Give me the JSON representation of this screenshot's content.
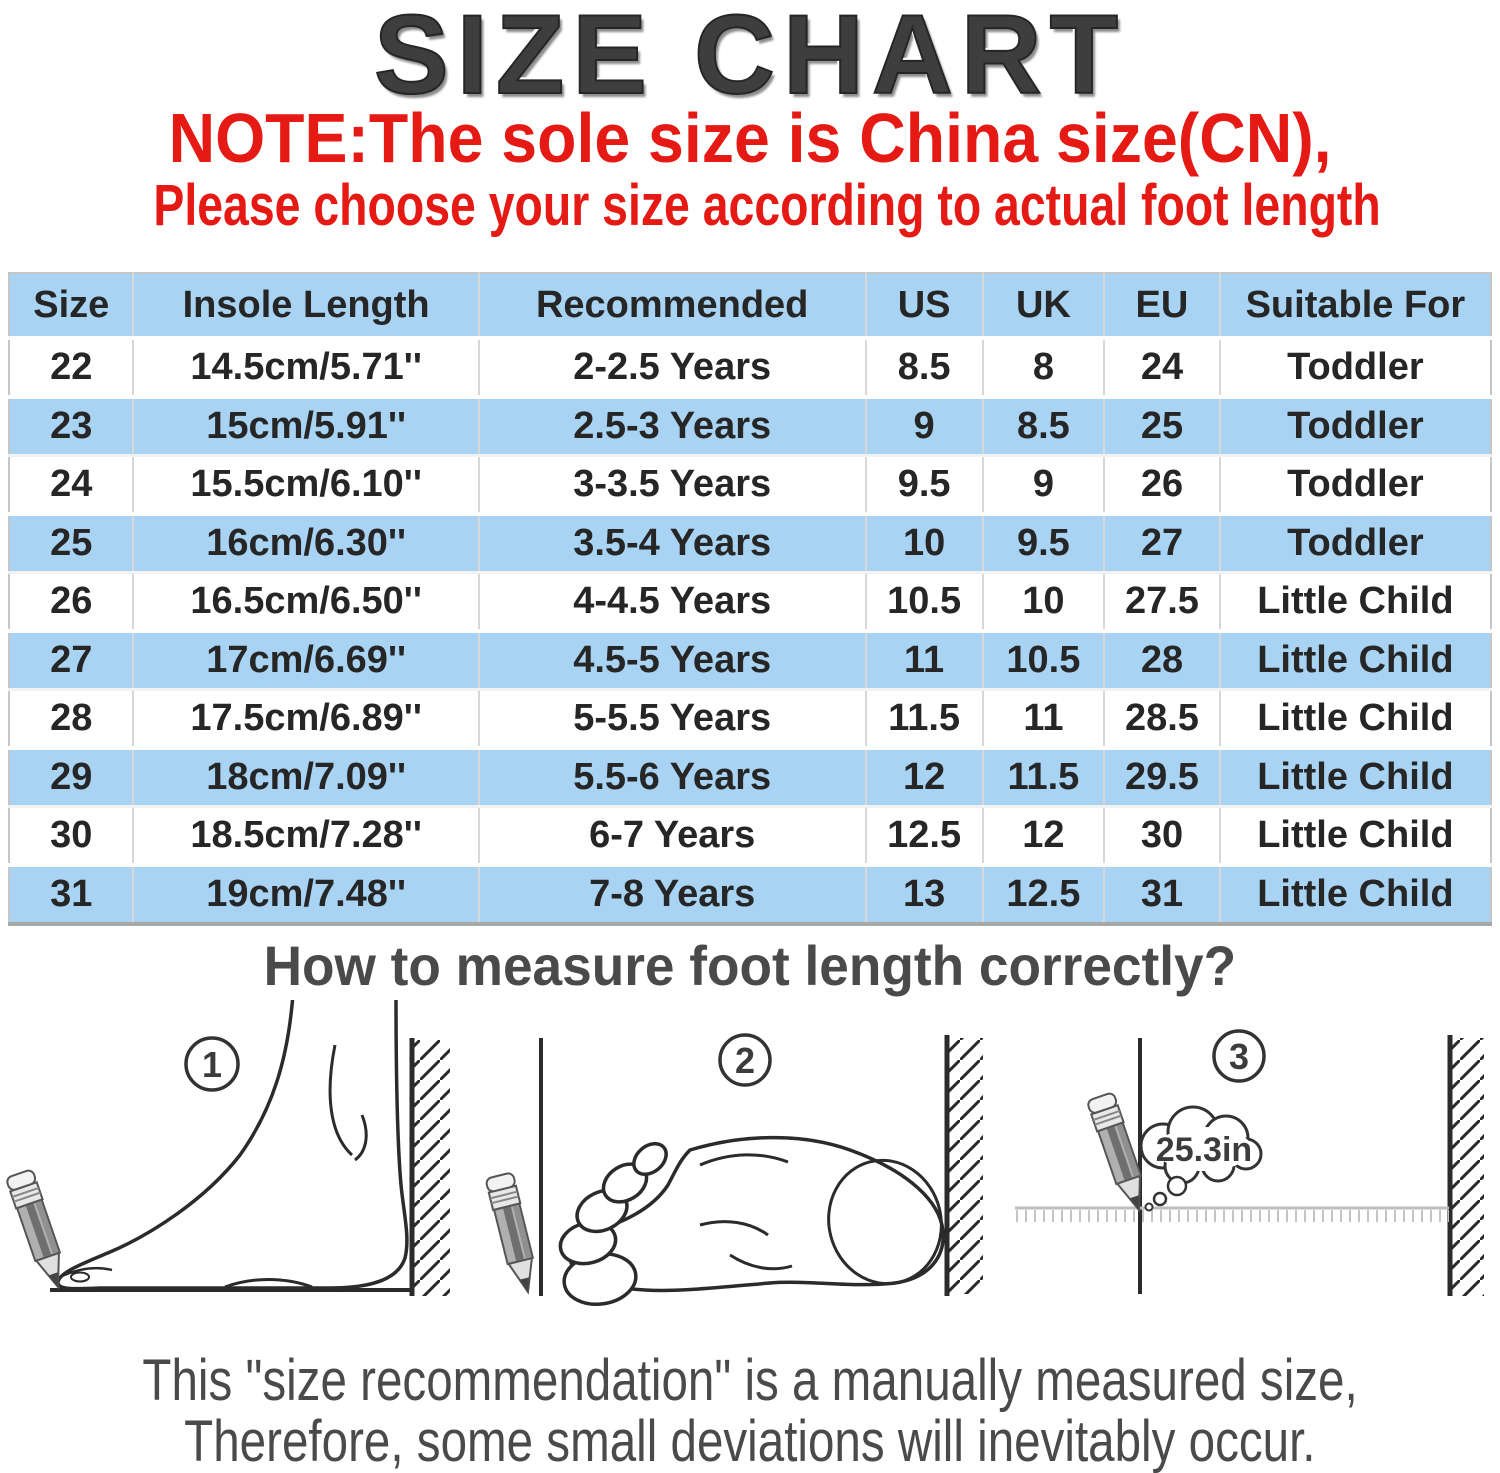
{
  "title": "SIZE CHART",
  "note": {
    "line1": "NOTE:The sole size is China size(CN),",
    "line2": "Please choose your size according to actual foot length"
  },
  "table": {
    "headers": [
      "Size",
      "Insole Length",
      "Recommended",
      "US",
      "UK",
      "EU",
      "Suitable For"
    ],
    "rows": [
      [
        "22",
        "14.5cm/5.71''",
        "2-2.5 Years",
        "8.5",
        "8",
        "24",
        "Toddler"
      ],
      [
        "23",
        "15cm/5.91''",
        "2.5-3 Years",
        "9",
        "8.5",
        "25",
        "Toddler"
      ],
      [
        "24",
        "15.5cm/6.10''",
        "3-3.5 Years",
        "9.5",
        "9",
        "26",
        "Toddler"
      ],
      [
        "25",
        "16cm/6.30''",
        "3.5-4 Years",
        "10",
        "9.5",
        "27",
        "Toddler"
      ],
      [
        "26",
        "16.5cm/6.50''",
        "4-4.5 Years",
        "10.5",
        "10",
        "27.5",
        "Little Child"
      ],
      [
        "27",
        "17cm/6.69''",
        "4.5-5 Years",
        "11",
        "10.5",
        "28",
        "Little Child"
      ],
      [
        "28",
        "17.5cm/6.89''",
        "5-5.5 Years",
        "11.5",
        "11",
        "28.5",
        "Little Child"
      ],
      [
        "29",
        "18cm/7.09''",
        "5.5-6 Years",
        "12",
        "11.5",
        "29.5",
        "Little Child"
      ],
      [
        "30",
        "18.5cm/7.28''",
        "6-7 Years",
        "12.5",
        "12",
        "30",
        "Little Child"
      ],
      [
        "31",
        "19cm/7.48''",
        "7-8 Years",
        "13",
        "12.5",
        "31",
        "Little Child"
      ]
    ]
  },
  "measure": {
    "heading": "How to measure foot length correctly?"
  },
  "diagram": {
    "steps": [
      "1",
      "2",
      "3"
    ],
    "bubble_text": "25.3in"
  },
  "footer": {
    "line1": "This \"size recommendation\" is a manually measured size,",
    "line2": "Therefore, some small deviations will inevitably occur."
  },
  "colors": {
    "accent_red": "#E51A14",
    "table_blue": "#A8D3F3",
    "title_gray": "#3E3E3E",
    "body_text": "#262626",
    "footer_gray": "#4A4A4A",
    "line_dark": "#2B2B2B"
  }
}
